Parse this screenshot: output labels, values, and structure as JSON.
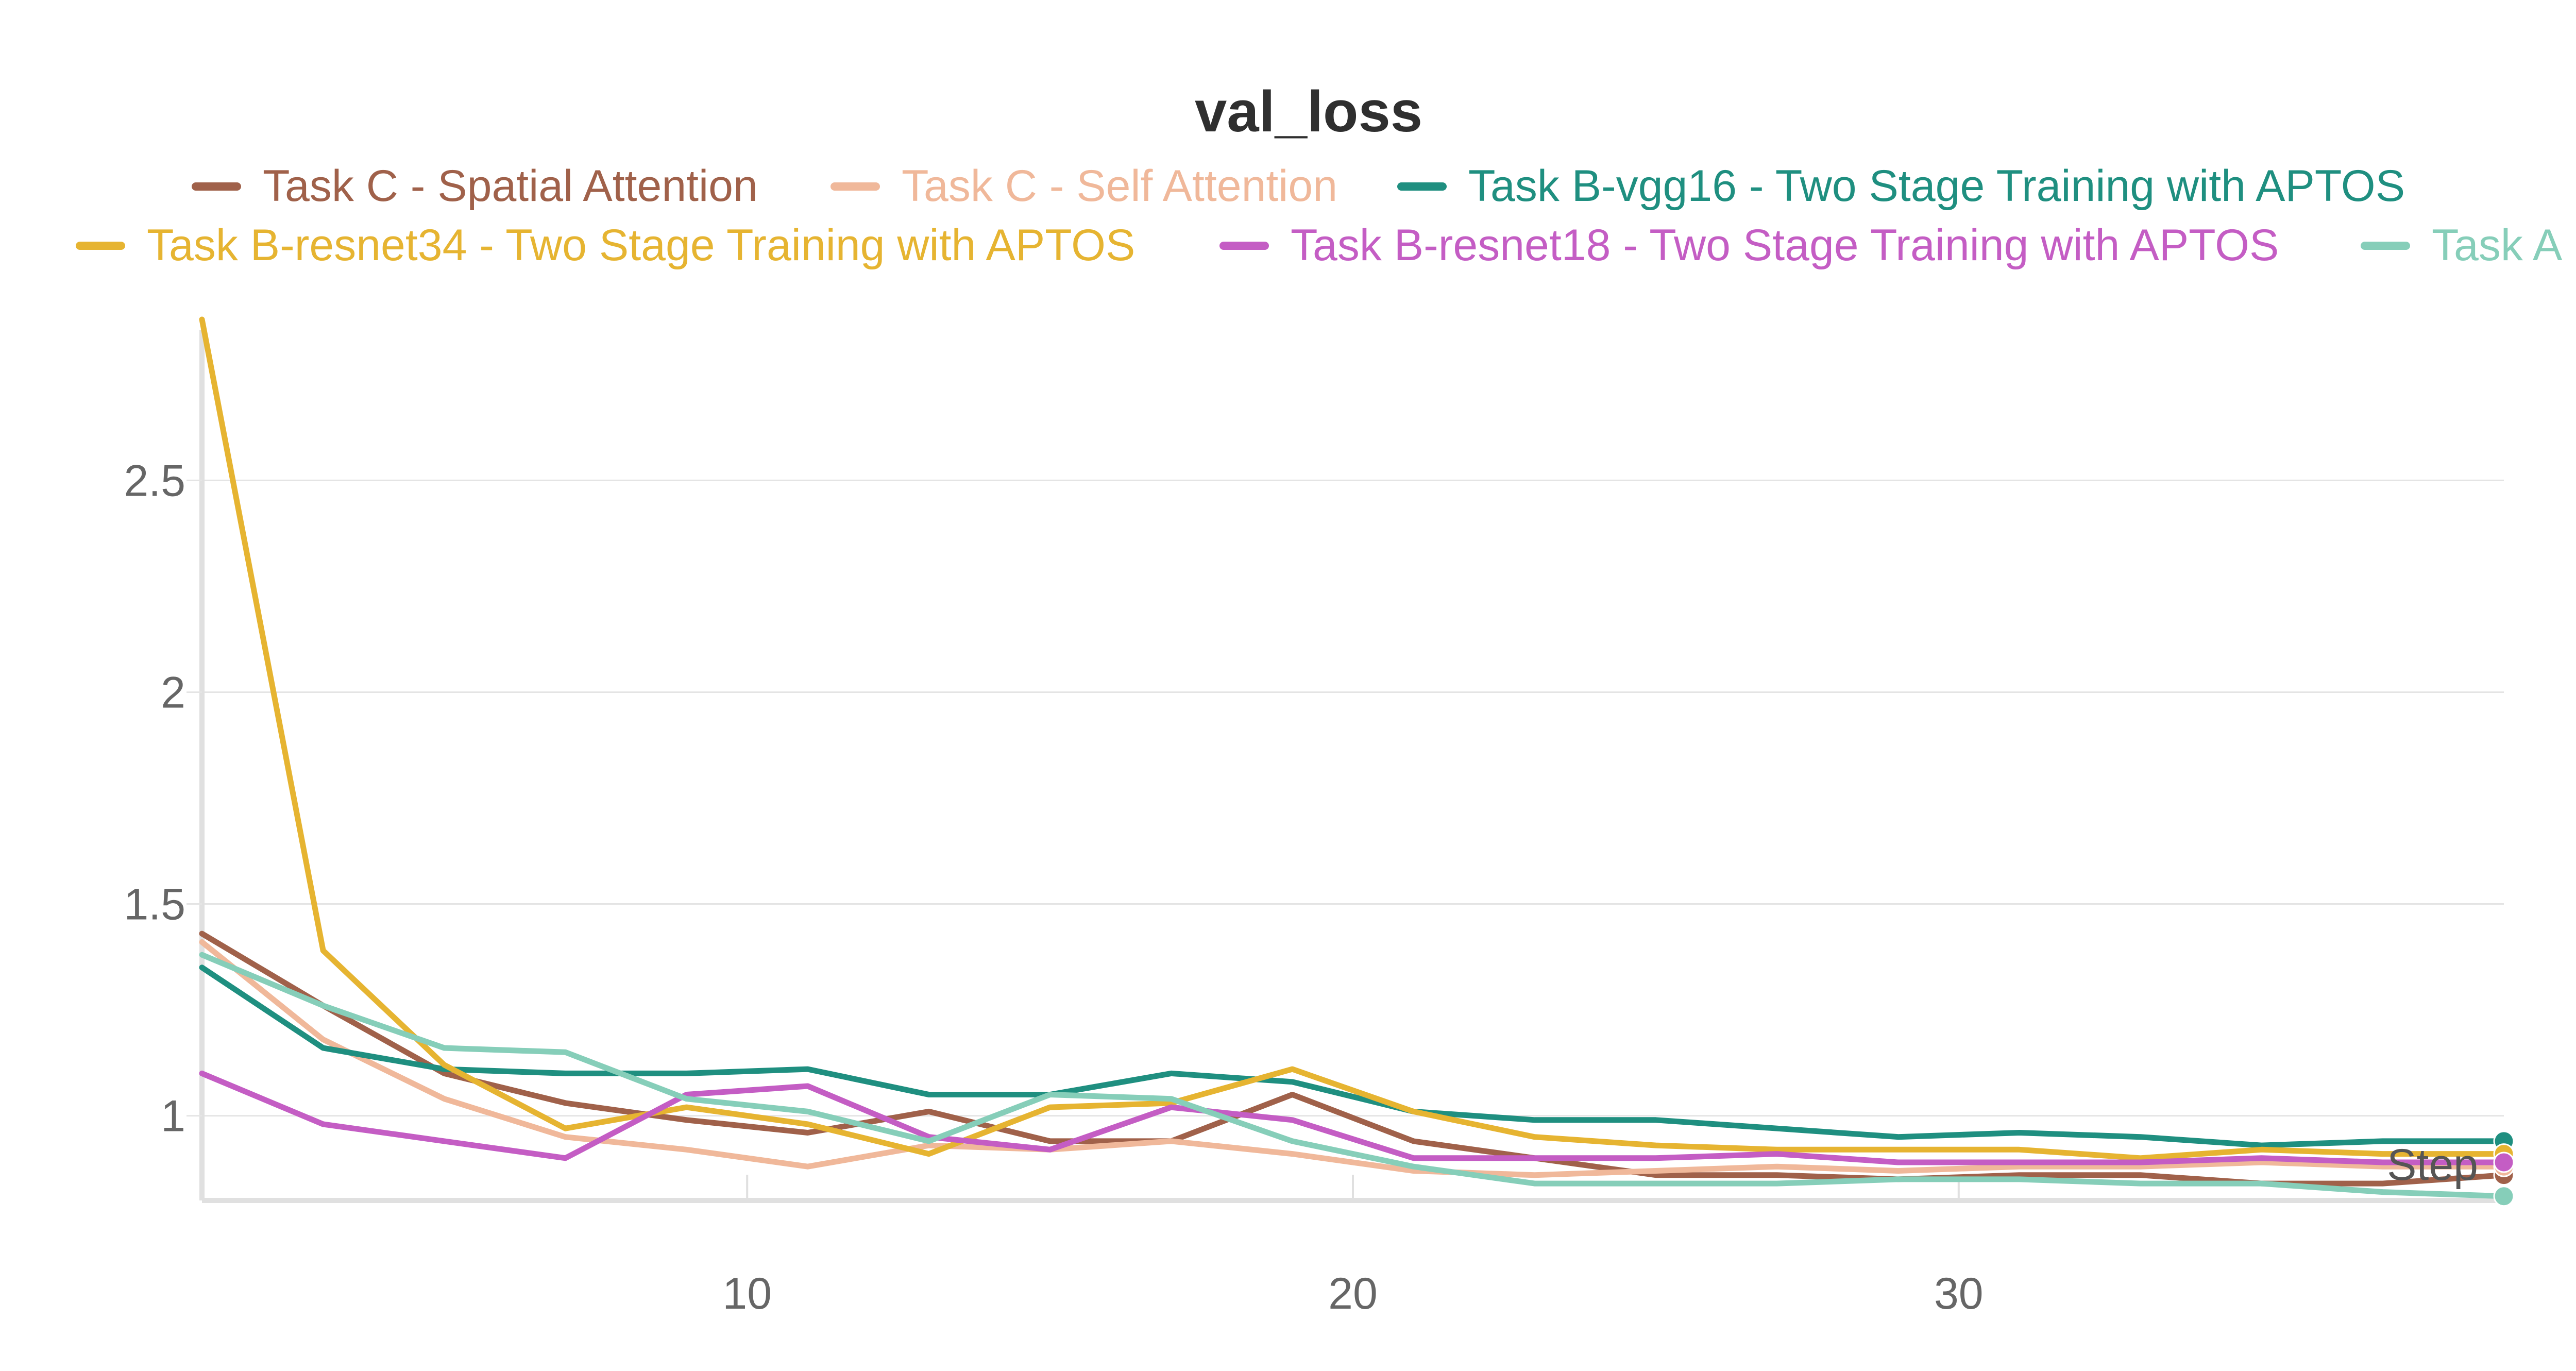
{
  "chart_data": {
    "type": "line",
    "title": "val_loss",
    "xlabel": "Step",
    "ylabel": "",
    "xlim": [
      1,
      39
    ],
    "ylim": [
      0.8,
      2.88
    ],
    "xticks": [
      10,
      20,
      30
    ],
    "yticks": [
      1,
      1.5,
      2,
      2.5
    ],
    "ytick_labels": [
      "1",
      "1.5",
      "2",
      "2.5"
    ],
    "grid": "horizontal",
    "legend_placement": "top",
    "x": [
      1,
      3,
      5,
      7,
      9,
      11,
      13,
      15,
      17,
      19,
      21,
      23,
      25,
      27,
      29,
      31,
      33,
      35,
      37,
      39
    ],
    "series": [
      {
        "name": "Task C - Spatial Attention",
        "color": "#a0614a",
        "values": [
          1.43,
          1.26,
          1.1,
          1.03,
          0.99,
          0.96,
          1.01,
          0.94,
          0.94,
          1.05,
          0.94,
          0.9,
          0.86,
          0.86,
          0.85,
          0.86,
          0.86,
          0.84,
          0.84,
          0.86
        ]
      },
      {
        "name": "Task C - Self Attention",
        "color": "#f0b89a",
        "values": [
          1.41,
          1.18,
          1.04,
          0.95,
          0.92,
          0.88,
          0.93,
          0.92,
          0.94,
          0.91,
          0.87,
          0.86,
          0.87,
          0.88,
          0.87,
          0.88,
          0.88,
          0.89,
          0.88,
          0.88
        ]
      },
      {
        "name": "Task B-vgg16 - Two Stage Training with APTOS",
        "color": "#1f8f80",
        "values": [
          1.35,
          1.16,
          1.11,
          1.1,
          1.1,
          1.11,
          1.05,
          1.05,
          1.1,
          1.08,
          1.01,
          0.99,
          0.99,
          0.97,
          0.95,
          0.96,
          0.95,
          0.93,
          0.94,
          0.94
        ]
      },
      {
        "name": "Task B-resnet34 - Two Stage Training with APTOS",
        "color": "#e6b431",
        "values": [
          2.88,
          1.39,
          1.12,
          0.97,
          1.02,
          0.98,
          0.91,
          1.02,
          1.03,
          1.11,
          1.01,
          0.95,
          0.93,
          0.92,
          0.92,
          0.92,
          0.9,
          0.92,
          0.91,
          0.91
        ]
      },
      {
        "name": "Task B-resnet18 - Two Stage Training with APTOS",
        "color": "#c45dc4",
        "values": [
          1.1,
          0.98,
          0.94,
          0.9,
          1.05,
          1.07,
          0.95,
          0.92,
          1.02,
          0.99,
          0.9,
          0.9,
          0.9,
          0.91,
          0.89,
          0.89,
          0.89,
          0.9,
          0.89,
          0.89
        ]
      },
      {
        "name": "Task A",
        "color": "#86ceb9",
        "values": [
          1.38,
          1.26,
          1.16,
          1.15,
          1.04,
          1.01,
          0.94,
          1.05,
          1.04,
          0.94,
          0.88,
          0.84,
          0.84,
          0.84,
          0.85,
          0.85,
          0.84,
          0.84,
          0.82,
          0.81
        ]
      }
    ]
  }
}
